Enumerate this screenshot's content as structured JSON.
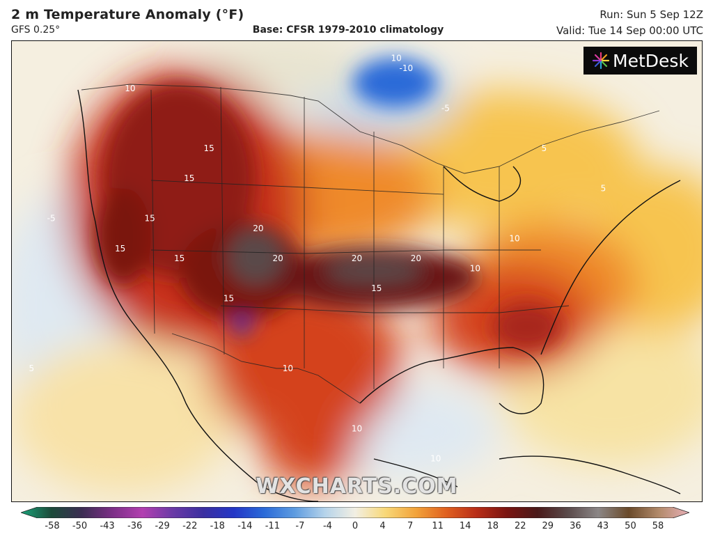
{
  "header": {
    "title": "2 m Temperature Anomaly (°F)",
    "model": "GFS 0.25°",
    "base": "Base: CFSR 1979-2010 climatology",
    "run": "Run: Sun 5 Sep 12Z",
    "valid": "Valid: Tue 14 Sep 00:00 UTC"
  },
  "logo": {
    "text": "MetDesk",
    "icon": "metdesk-burst-icon"
  },
  "watermark": "WXCHARTS.COM",
  "colors": {
    "deep_hot": "#4a0f12",
    "hot": "#8f1d15",
    "warm": "#d4431c",
    "mild": "#ef8a2a",
    "slight": "#f7c450",
    "neutral": "#f2efe3",
    "cool": "#dfe9f2",
    "cold": "#5b8fd4",
    "very_cold": "#2456b8"
  },
  "colorbar": {
    "labels": [
      "-58",
      "-50",
      "-43",
      "-36",
      "-29",
      "-22",
      "-18",
      "-14",
      "-11",
      "-7",
      "-4",
      "0",
      "4",
      "7",
      "11",
      "14",
      "18",
      "22",
      "29",
      "36",
      "43",
      "50",
      "58"
    ],
    "stops": [
      "#1aa37a",
      "#1c4b3a",
      "#3b2d52",
      "#7b2f86",
      "#b23fb0",
      "#6a3aa6",
      "#3b2fa0",
      "#2336c6",
      "#2a6ad8",
      "#5d9be0",
      "#b5d3ea",
      "#f2efe3",
      "#f8d878",
      "#f2a33a",
      "#e0601f",
      "#b82d17",
      "#7a1511",
      "#4a1a1a",
      "#5a4a4a",
      "#8b8686",
      "#6a4a2a",
      "#b28a6a",
      "#e8b0b8"
    ]
  },
  "map": {
    "contour_labels": [
      {
        "text": "10",
        "lon": -120,
        "lat": 53
      },
      {
        "text": "15",
        "lon": -112,
        "lat": 47
      },
      {
        "text": "15",
        "lon": -118,
        "lat": 40
      },
      {
        "text": "20",
        "lon": -107,
        "lat": 39
      },
      {
        "text": "20",
        "lon": -105,
        "lat": 36
      },
      {
        "text": "20",
        "lon": -97,
        "lat": 36
      },
      {
        "text": "20",
        "lon": -91,
        "lat": 36
      },
      {
        "text": "15",
        "lon": -95,
        "lat": 33
      },
      {
        "text": "10",
        "lon": -85,
        "lat": 35
      },
      {
        "text": "10",
        "lon": -81,
        "lat": 38
      },
      {
        "text": "10",
        "lon": -104,
        "lat": 25
      },
      {
        "text": "10",
        "lon": -97,
        "lat": 19
      },
      {
        "text": "10",
        "lon": -89,
        "lat": 16
      },
      {
        "text": "5",
        "lon": -130,
        "lat": 25
      },
      {
        "text": "5",
        "lon": -72,
        "lat": 43
      },
      {
        "text": "-5",
        "lon": -128,
        "lat": 40
      },
      {
        "text": "-5",
        "lon": -88,
        "lat": 51
      },
      {
        "text": "-10",
        "lon": -92,
        "lat": 55
      },
      {
        "text": "10",
        "lon": -93,
        "lat": 56
      },
      {
        "text": "15",
        "lon": -115,
        "lat": 36
      },
      {
        "text": "15",
        "lon": -121,
        "lat": 37
      },
      {
        "text": "15",
        "lon": -110,
        "lat": 32
      },
      {
        "text": "15",
        "lon": -114,
        "lat": 44
      },
      {
        "text": "5",
        "lon": -78,
        "lat": 47
      }
    ]
  }
}
